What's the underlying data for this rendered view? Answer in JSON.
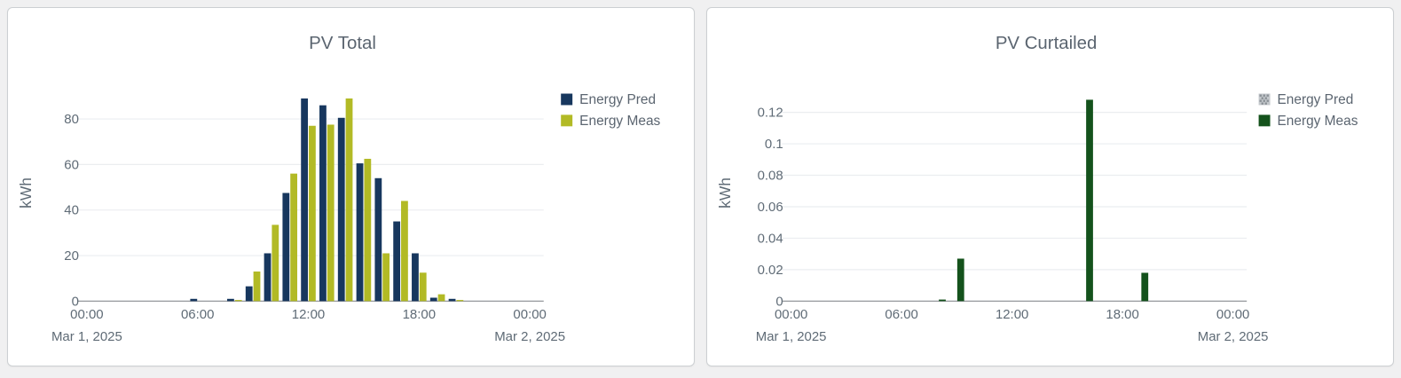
{
  "page": {
    "background_color": "#f0f0f1",
    "card_background": "#ffffff",
    "card_border_color": "#cccfd2"
  },
  "theme": {
    "title_color": "#5b6570",
    "tick_label_color": "#5f6b76",
    "axis_line_color": "#95989c",
    "gridline_color": "#ebedf0",
    "legend_text_color": "#5b6570"
  },
  "chart_data": [
    {
      "type": "bar",
      "title": "PV Total",
      "ylabel": "kWh",
      "x_axis": {
        "start_date_label": "Mar 1, 2025",
        "end_date_label": "Mar 2, 2025",
        "ticks": [
          {
            "hour": 0,
            "label": "00:00",
            "sub": "Mar 1, 2025"
          },
          {
            "hour": 6,
            "label": "06:00",
            "sub": ""
          },
          {
            "hour": 12,
            "label": "12:00",
            "sub": ""
          },
          {
            "hour": 18,
            "label": "18:00",
            "sub": ""
          },
          {
            "hour": 24,
            "label": "00:00",
            "sub": "Mar 2, 2025"
          }
        ]
      },
      "y_axis": {
        "max": 95,
        "ticks": [
          {
            "value": 0,
            "label": "0"
          },
          {
            "value": 20,
            "label": "20"
          },
          {
            "value": 40,
            "label": "40"
          },
          {
            "value": 60,
            "label": "60"
          },
          {
            "value": 80,
            "label": "80"
          }
        ]
      },
      "hours": [
        0,
        1,
        2,
        3,
        4,
        5,
        6,
        7,
        8,
        9,
        10,
        11,
        12,
        13,
        14,
        15,
        16,
        17,
        18,
        19,
        20,
        21,
        22,
        23
      ],
      "series": [
        {
          "name": "Energy Pred",
          "color": "#17375e",
          "swatch": "solid",
          "values": [
            0,
            0,
            0,
            0,
            0,
            0,
            1,
            0,
            1,
            6.5,
            21,
            47.5,
            89,
            86,
            80.5,
            60.5,
            54,
            35,
            21,
            1.5,
            1,
            0,
            0,
            0
          ]
        },
        {
          "name": "Energy Meas",
          "color": "#b2ba25",
          "swatch": "solid",
          "values": [
            0,
            0,
            0,
            0,
            0,
            0,
            0,
            0,
            0.5,
            13,
            33.5,
            56,
            77,
            77.5,
            89,
            62.5,
            21,
            44,
            12.5,
            3,
            0.5,
            0,
            0,
            0
          ]
        }
      ]
    },
    {
      "type": "bar",
      "title": "PV Curtailed",
      "ylabel": "kWh",
      "x_axis": {
        "start_date_label": "Mar 1, 2025",
        "end_date_label": "Mar 2, 2025",
        "ticks": [
          {
            "hour": 0,
            "label": "00:00",
            "sub": "Mar 1, 2025"
          },
          {
            "hour": 6,
            "label": "06:00",
            "sub": ""
          },
          {
            "hour": 12,
            "label": "12:00",
            "sub": ""
          },
          {
            "hour": 18,
            "label": "18:00",
            "sub": ""
          },
          {
            "hour": 24,
            "label": "00:00",
            "sub": "Mar 2, 2025"
          }
        ]
      },
      "y_axis": {
        "max": 0.1375,
        "ticks": [
          {
            "value": 0,
            "label": "0"
          },
          {
            "value": 0.02,
            "label": "0.02"
          },
          {
            "value": 0.04,
            "label": "0.04"
          },
          {
            "value": 0.06,
            "label": "0.06"
          },
          {
            "value": 0.08,
            "label": "0.08"
          },
          {
            "value": 0.1,
            "label": "0.1"
          },
          {
            "value": 0.12,
            "label": "0.12"
          }
        ]
      },
      "hours": [
        0,
        1,
        2,
        3,
        4,
        5,
        6,
        7,
        8,
        9,
        10,
        11,
        12,
        13,
        14,
        15,
        16,
        17,
        18,
        19,
        20,
        21,
        22,
        23
      ],
      "series": [
        {
          "name": "Energy Pred",
          "color": "#b0b5ba",
          "swatch": "dotted",
          "values": [
            0,
            0,
            0,
            0,
            0,
            0,
            0,
            0,
            0,
            0,
            0,
            0,
            0,
            0,
            0,
            0,
            0,
            0,
            0,
            0,
            0,
            0,
            0,
            0
          ]
        },
        {
          "name": "Energy Meas",
          "color": "#14521c",
          "swatch": "solid",
          "values": [
            0,
            0,
            0,
            0,
            0,
            0,
            0,
            0,
            0.001,
            0.027,
            0,
            0,
            0,
            0,
            0,
            0,
            0.128,
            0,
            0,
            0.018,
            0,
            0,
            0,
            0
          ]
        }
      ]
    }
  ]
}
